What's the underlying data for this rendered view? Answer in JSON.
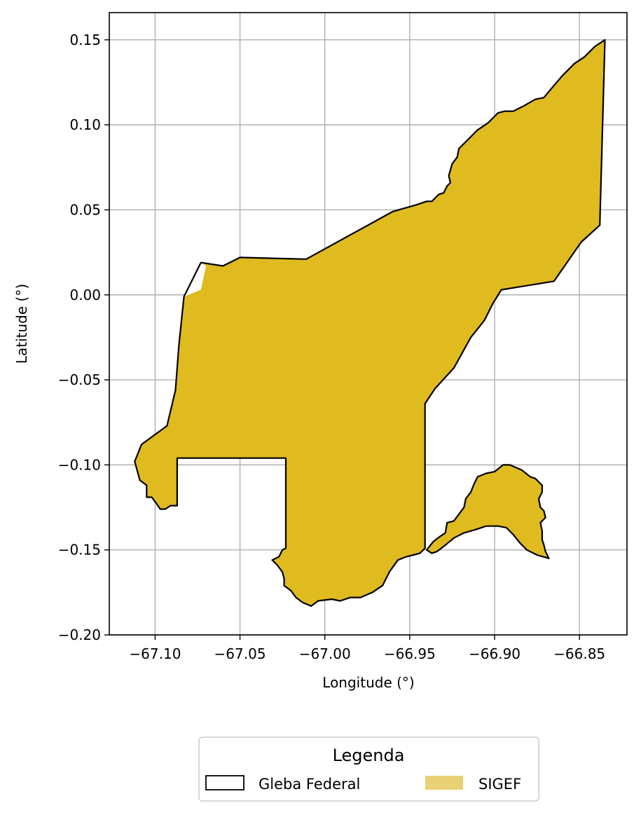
{
  "map": {
    "xlabel": "Longitude (°)",
    "ylabel": "Latitude (°)",
    "xlim": [
      -67.127,
      -66.822
    ],
    "ylim": [
      -0.2,
      0.166
    ],
    "x_ticks": [
      {
        "value": -67.1,
        "label": "−67.10"
      },
      {
        "value": -67.05,
        "label": "−67.05"
      },
      {
        "value": -67.0,
        "label": "−67.00"
      },
      {
        "value": -66.95,
        "label": "−66.95"
      },
      {
        "value": -66.9,
        "label": "−66.90"
      },
      {
        "value": -66.85,
        "label": "−66.85"
      }
    ],
    "y_ticks": [
      {
        "value": 0.15,
        "label": "0.15"
      },
      {
        "value": 0.1,
        "label": "0.10"
      },
      {
        "value": 0.05,
        "label": "0.05"
      },
      {
        "value": 0.0,
        "label": "0.00"
      },
      {
        "value": -0.05,
        "label": "−0.05"
      },
      {
        "value": -0.1,
        "label": "−0.10"
      },
      {
        "value": -0.15,
        "label": "−0.15"
      },
      {
        "value": -0.2,
        "label": "−0.20"
      }
    ],
    "grid": true,
    "colors": {
      "sigef_fill": "#dfbb1f",
      "sigef_legend": "#e9d176",
      "gleba_stroke": "#000000",
      "grid": "#b0b0b0"
    }
  },
  "legend": {
    "title": "Legenda",
    "placement": "bottom-center",
    "items": [
      {
        "label": "Gleba Federal",
        "style": "outline"
      },
      {
        "label": "SIGEF",
        "style": "fill"
      }
    ]
  },
  "layers": {
    "gleba_main": [
      [
        -67.112,
        -0.098
      ],
      [
        -67.109,
        -0.109
      ],
      [
        -67.105,
        -0.112
      ],
      [
        -67.105,
        -0.119
      ],
      [
        -67.102,
        -0.119
      ],
      [
        -67.099,
        -0.123
      ],
      [
        -67.097,
        -0.126
      ],
      [
        -67.094,
        -0.126
      ],
      [
        -67.091,
        -0.124
      ],
      [
        -67.088,
        -0.124
      ],
      [
        -67.087,
        -0.124
      ],
      [
        -67.087,
        -0.096
      ],
      [
        -67.023,
        -0.096
      ],
      [
        -67.023,
        -0.149
      ],
      [
        -67.025,
        -0.15
      ],
      [
        -67.027,
        -0.154
      ],
      [
        -67.031,
        -0.156
      ],
      [
        -67.028,
        -0.159
      ],
      [
        -67.025,
        -0.163
      ],
      [
        -67.024,
        -0.167
      ],
      [
        -67.024,
        -0.171
      ],
      [
        -67.02,
        -0.174
      ],
      [
        -67.017,
        -0.178
      ],
      [
        -67.013,
        -0.181
      ],
      [
        -67.008,
        -0.183
      ],
      [
        -67.004,
        -0.18
      ],
      [
        -66.996,
        -0.179
      ],
      [
        -66.991,
        -0.18
      ],
      [
        -66.985,
        -0.178
      ],
      [
        -66.979,
        -0.178
      ],
      [
        -66.972,
        -0.175
      ],
      [
        -66.966,
        -0.171
      ],
      [
        -66.962,
        -0.163
      ],
      [
        -66.957,
        -0.156
      ],
      [
        -66.952,
        -0.154
      ],
      [
        -66.948,
        -0.153
      ],
      [
        -66.944,
        -0.152
      ],
      [
        -66.941,
        -0.149
      ],
      [
        -66.941,
        -0.064
      ],
      [
        -66.935,
        -0.055
      ],
      [
        -66.924,
        -0.043
      ],
      [
        -66.914,
        -0.025
      ],
      [
        -66.906,
        -0.015
      ],
      [
        -66.901,
        -0.005
      ],
      [
        -66.896,
        0.003
      ],
      [
        -66.865,
        0.008
      ],
      [
        -66.849,
        0.031
      ],
      [
        -66.838,
        0.041
      ],
      [
        -66.835,
        0.15
      ],
      [
        -66.841,
        0.146
      ],
      [
        -66.847,
        0.14
      ],
      [
        -66.853,
        0.136
      ],
      [
        -66.86,
        0.129
      ],
      [
        -66.866,
        0.122
      ],
      [
        -66.871,
        0.116
      ],
      [
        -66.876,
        0.115
      ],
      [
        -66.883,
        0.111
      ],
      [
        -66.889,
        0.108
      ],
      [
        -66.894,
        0.108
      ],
      [
        -66.898,
        0.107
      ],
      [
        -66.901,
        0.104
      ],
      [
        -66.904,
        0.101
      ],
      [
        -66.91,
        0.097
      ],
      [
        -66.916,
        0.091
      ],
      [
        -66.921,
        0.086
      ],
      [
        -66.922,
        0.081
      ],
      [
        -66.925,
        0.077
      ],
      [
        -66.927,
        0.07
      ],
      [
        -66.926,
        0.066
      ],
      [
        -66.928,
        0.064
      ],
      [
        -66.93,
        0.06
      ],
      [
        -66.933,
        0.059
      ],
      [
        -66.935,
        0.057
      ],
      [
        -66.937,
        0.055
      ],
      [
        -66.94,
        0.055
      ],
      [
        -66.946,
        0.053
      ],
      [
        -66.96,
        0.049
      ],
      [
        -67.011,
        0.021
      ],
      [
        -67.05,
        0.022
      ],
      [
        -67.06,
        0.017
      ],
      [
        -67.073,
        0.019
      ],
      [
        -67.083,
        -0.001
      ],
      [
        -67.086,
        -0.03
      ],
      [
        -67.088,
        -0.056
      ],
      [
        -67.093,
        -0.077
      ],
      [
        -67.108,
        -0.088
      ]
    ],
    "gleba_east": [
      [
        -66.94,
        -0.15
      ],
      [
        -66.936,
        -0.145
      ],
      [
        -66.932,
        -0.142
      ],
      [
        -66.929,
        -0.14
      ],
      [
        -66.928,
        -0.134
      ],
      [
        -66.924,
        -0.133
      ],
      [
        -66.921,
        -0.129
      ],
      [
        -66.918,
        -0.125
      ],
      [
        -66.917,
        -0.12
      ],
      [
        -66.914,
        -0.116
      ],
      [
        -66.912,
        -0.111
      ],
      [
        -66.91,
        -0.107
      ],
      [
        -66.905,
        -0.105
      ],
      [
        -66.9,
        -0.104
      ],
      [
        -66.895,
        -0.1
      ],
      [
        -66.891,
        -0.1
      ],
      [
        -66.884,
        -0.103
      ],
      [
        -66.879,
        -0.107
      ],
      [
        -66.876,
        -0.108
      ],
      [
        -66.874,
        -0.11
      ],
      [
        -66.872,
        -0.112
      ],
      [
        -66.872,
        -0.116
      ],
      [
        -66.874,
        -0.12
      ],
      [
        -66.873,
        -0.125
      ],
      [
        -66.871,
        -0.127
      ],
      [
        -66.87,
        -0.131
      ],
      [
        -66.873,
        -0.134
      ],
      [
        -66.872,
        -0.139
      ],
      [
        -66.872,
        -0.144
      ],
      [
        -66.871,
        -0.147
      ],
      [
        -66.87,
        -0.151
      ],
      [
        -66.868,
        -0.155
      ],
      [
        -66.875,
        -0.153
      ],
      [
        -66.881,
        -0.15
      ],
      [
        -66.885,
        -0.146
      ],
      [
        -66.889,
        -0.141
      ],
      [
        -66.893,
        -0.137
      ],
      [
        -66.898,
        -0.136
      ],
      [
        -66.905,
        -0.136
      ],
      [
        -66.911,
        -0.138
      ],
      [
        -66.918,
        -0.14
      ],
      [
        -66.924,
        -0.143
      ],
      [
        -66.93,
        -0.148
      ],
      [
        -66.934,
        -0.151
      ],
      [
        -66.937,
        -0.152
      ]
    ],
    "sigef_cut": [
      [
        -67.083,
        -0.001
      ],
      [
        -67.073,
        0.003
      ],
      [
        -67.07,
        0.017
      ],
      [
        -67.073,
        0.019
      ]
    ]
  }
}
